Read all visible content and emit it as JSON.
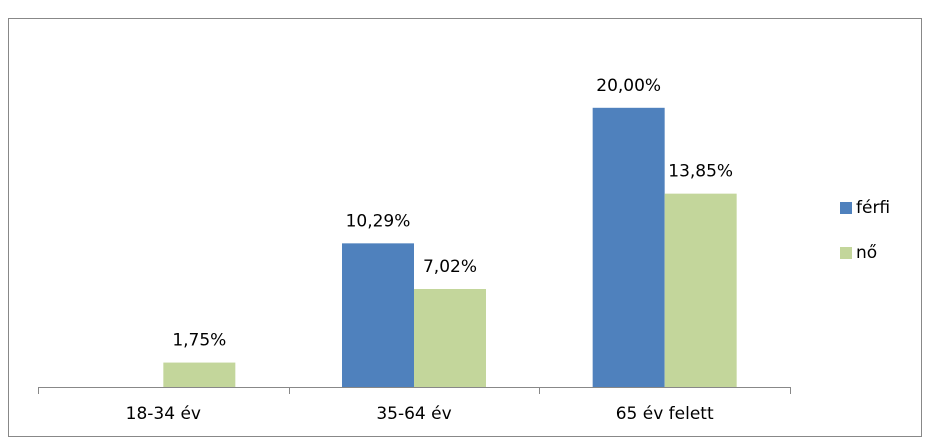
{
  "chart_data": {
    "type": "bar",
    "categories": [
      "18-34 év",
      "35-64 év",
      "65 év felett"
    ],
    "series": [
      {
        "name": "férfi",
        "color": "#4f81bd",
        "values": [
          null,
          10.29,
          20.0
        ],
        "value_labels": [
          null,
          "10,29%",
          "20,00%"
        ]
      },
      {
        "name": "nő",
        "color": "#c3d69b",
        "values": [
          1.75,
          7.02,
          13.85
        ],
        "value_labels": [
          "1,75%",
          "7,02%",
          "13,85%"
        ]
      }
    ],
    "ylim": [
      0,
      25
    ],
    "legend": "right"
  }
}
